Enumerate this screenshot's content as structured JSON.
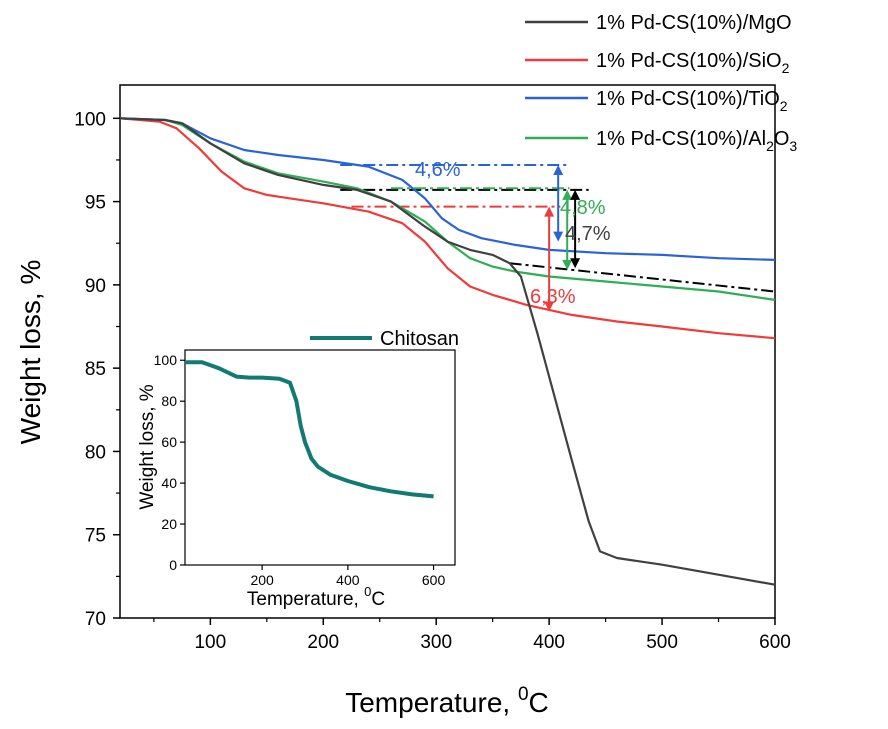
{
  "chart_data": [
    {
      "type": "line",
      "xlabel": "Temperature, ",
      "xlabel_sup": "0",
      "xlabel_unit": "C",
      "ylabel": "Weight loss, %",
      "xlim": [
        20,
        600
      ],
      "ylim": [
        70,
        102
      ],
      "xticks": [
        "100",
        "200",
        "300",
        "400",
        "500",
        "600"
      ],
      "xtick_values": [
        100,
        200,
        300,
        400,
        500,
        600
      ],
      "yticks": [
        "70",
        "75",
        "80",
        "85",
        "90",
        "95",
        "100"
      ],
      "ytick_values": [
        70,
        75,
        80,
        85,
        90,
        95,
        100
      ],
      "legend": [
        {
          "prefix": "1% Pd-CS(10%)/MgO",
          "sub": "",
          "suffix": "",
          "color": "#404040"
        },
        {
          "prefix": "1% Pd-CS(10%)/SiO",
          "sub": "2",
          "suffix": "",
          "color": "#ee3b3b"
        },
        {
          "prefix": "1% Pd-CS(10%)/TiO",
          "sub": "2",
          "suffix": "",
          "color": "#2a63d6"
        },
        {
          "prefix": "1% Pd-CS(10%)/Al",
          "sub": "2",
          "suffix": "O",
          "sub2": "3",
          "color": "#2fae55"
        }
      ],
      "series": [
        {
          "name": "1% Pd-CS(10%)/MgO",
          "color": "#404040",
          "x": [
            20,
            60,
            75,
            100,
            130,
            160,
            200,
            230,
            260,
            290,
            310,
            330,
            350,
            365,
            375,
            390,
            400,
            420,
            435,
            445,
            460,
            500,
            550,
            600
          ],
          "y": [
            100,
            99.9,
            99.7,
            98.5,
            97.3,
            96.6,
            96.0,
            95.7,
            95.0,
            93.5,
            92.6,
            92.1,
            91.8,
            91.3,
            90.5,
            87.0,
            84.5,
            79.5,
            75.8,
            74.0,
            73.6,
            73.2,
            72.6,
            72.0
          ]
        },
        {
          "name": "1% Pd-CS(10%)/SiO2",
          "color": "#ee3b3b",
          "x": [
            20,
            55,
            70,
            90,
            110,
            130,
            150,
            170,
            200,
            240,
            270,
            290,
            310,
            330,
            350,
            380,
            420,
            460,
            500,
            550,
            600
          ],
          "y": [
            100,
            99.8,
            99.4,
            98.2,
            96.8,
            95.8,
            95.4,
            95.2,
            94.9,
            94.4,
            93.7,
            92.6,
            91.0,
            89.9,
            89.4,
            88.8,
            88.2,
            87.8,
            87.5,
            87.1,
            86.8
          ]
        },
        {
          "name": "1% Pd-CS(10%)/TiO2",
          "color": "#2a63d6",
          "x": [
            20,
            60,
            75,
            100,
            130,
            160,
            200,
            240,
            270,
            290,
            305,
            320,
            340,
            370,
            400,
            450,
            500,
            550,
            600
          ],
          "y": [
            100,
            99.9,
            99.7,
            98.8,
            98.1,
            97.8,
            97.5,
            97.1,
            96.3,
            95.2,
            94.0,
            93.3,
            92.8,
            92.4,
            92.1,
            91.9,
            91.8,
            91.6,
            91.5
          ]
        },
        {
          "name": "1% Pd-CS(10%)/Al2O3",
          "color": "#2fae55",
          "x": [
            20,
            60,
            75,
            100,
            130,
            160,
            200,
            230,
            260,
            290,
            310,
            330,
            350,
            370,
            400,
            450,
            500,
            550,
            600
          ],
          "y": [
            100,
            99.9,
            99.6,
            98.5,
            97.4,
            96.7,
            96.2,
            95.8,
            95.0,
            93.8,
            92.6,
            91.6,
            91.1,
            90.8,
            90.5,
            90.2,
            89.9,
            89.6,
            89.1
          ]
        }
      ],
      "reference_lines": [
        {
          "color": "#000000",
          "x": [
            215,
            435
          ],
          "y": 95.7
        },
        {
          "color": "#2a63d6",
          "x": [
            215,
            418
          ],
          "y": 97.2
        },
        {
          "color": "#ee3b3b",
          "x": [
            225,
            410
          ],
          "y": 94.7
        },
        {
          "color": "#2fae55",
          "x": [
            260,
            418
          ],
          "y": 95.8
        },
        {
          "color": "#000000",
          "x": [
            365,
            600
          ],
          "y": [
            91.3,
            89.6
          ]
        }
      ],
      "arrows": [
        {
          "color": "#2a63d6",
          "x": 408,
          "y1": 97.2,
          "y2": 92.6
        },
        {
          "color": "#ee3b3b",
          "x": 400,
          "y1": 94.7,
          "y2": 88.4
        },
        {
          "color": "#2fae55",
          "x": 416,
          "y1": 95.7,
          "y2": 90.9
        },
        {
          "color": "#000000",
          "x": 423,
          "y1": 95.7,
          "y2": 91.0
        }
      ],
      "annotations": [
        {
          "text": "4,6%",
          "color": "#2a63d6"
        },
        {
          "text": "4,8%",
          "color": "#2fae55"
        },
        {
          "text": "4,7%",
          "color": "#404040"
        },
        {
          "text": "6,3%",
          "color": "#ee3b3b"
        }
      ]
    },
    {
      "type": "line",
      "name": "inset",
      "legend": "Chitosan",
      "color": "#117a72",
      "xlabel": "Temperature, ",
      "xlabel_sup": "0",
      "xlabel_unit": "C",
      "ylabel": "Weight loss, %",
      "xlim": [
        20,
        650
      ],
      "ylim": [
        0,
        105
      ],
      "xticks": [
        "200",
        "400",
        "600"
      ],
      "xtick_values": [
        200,
        400,
        600
      ],
      "yticks": [
        "0",
        "20",
        "40",
        "60",
        "80",
        "100"
      ],
      "ytick_values": [
        0,
        20,
        40,
        60,
        80,
        100
      ],
      "x": [
        20,
        60,
        100,
        140,
        170,
        200,
        240,
        265,
        280,
        290,
        300,
        315,
        330,
        360,
        400,
        450,
        500,
        550,
        600
      ],
      "y": [
        99,
        99,
        96,
        92,
        91.5,
        91.5,
        91,
        89,
        80,
        68,
        60,
        52,
        48,
        44,
        41,
        38,
        36,
        34.5,
        33.5
      ]
    }
  ]
}
